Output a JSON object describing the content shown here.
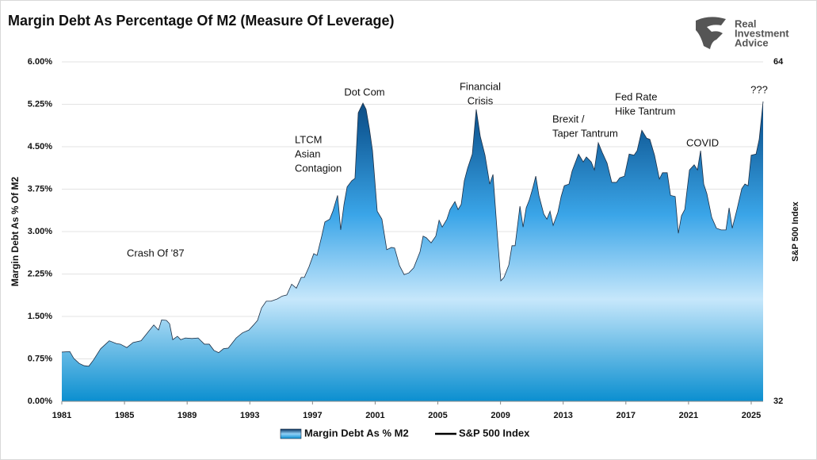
{
  "chart_data": {
    "type": "area",
    "title": "Margin Debt As Percentage Of M2 (Measure Of Leverage)",
    "logo": [
      "Real",
      "Investment",
      "Advice"
    ],
    "ylabel": "Margin Debt As % Of M2",
    "y2label": "S&P 500 Index",
    "x": [
      1981.0,
      1981.51,
      1981.76,
      1982.11,
      1982.42,
      1982.72,
      1983.02,
      1983.48,
      1984.03,
      1984.49,
      1984.74,
      1985.15,
      1985.55,
      1986.06,
      1986.46,
      1986.87,
      1987.17,
      1987.37,
      1987.68,
      1987.88,
      1988.08,
      1988.38,
      1988.59,
      1988.89,
      1989.3,
      1989.7,
      1990.1,
      1990.41,
      1990.71,
      1991.01,
      1991.32,
      1991.62,
      1992.13,
      1992.53,
      1992.94,
      1993.24,
      1993.49,
      1993.75,
      1994.05,
      1994.35,
      1994.76,
      1995.06,
      1995.36,
      1995.67,
      1995.97,
      1996.28,
      1996.48,
      1996.78,
      1997.08,
      1997.29,
      1997.59,
      1997.79,
      1998.1,
      1998.3,
      1998.6,
      1998.8,
      1999.01,
      1999.21,
      1999.51,
      1999.71,
      1999.92,
      2000.22,
      2000.42,
      2000.63,
      2000.83,
      2001.13,
      2001.43,
      2001.74,
      2002.04,
      2002.24,
      2002.55,
      2002.85,
      2003.15,
      2003.46,
      2003.86,
      2004.06,
      2004.27,
      2004.57,
      2004.87,
      2005.08,
      2005.28,
      2005.58,
      2005.78,
      2006.09,
      2006.29,
      2006.49,
      2006.69,
      2006.9,
      2007.2,
      2007.45,
      2007.71,
      2008.01,
      2008.31,
      2008.52,
      2008.82,
      2009.02,
      2009.22,
      2009.53,
      2009.73,
      2009.93,
      2010.24,
      2010.44,
      2010.64,
      2010.84,
      2011.05,
      2011.25,
      2011.45,
      2011.76,
      2011.96,
      2012.16,
      2012.36,
      2012.66,
      2012.87,
      2013.07,
      2013.37,
      2013.57,
      2013.98,
      2014.28,
      2014.48,
      2014.79,
      2014.99,
      2015.24,
      2015.49,
      2015.8,
      2016.1,
      2016.4,
      2016.61,
      2016.91,
      2017.21,
      2017.52,
      2017.72,
      2018.02,
      2018.33,
      2018.53,
      2018.83,
      2019.14,
      2019.34,
      2019.64,
      2019.85,
      2020.15,
      2020.35,
      2020.55,
      2020.76,
      2021.06,
      2021.36,
      2021.57,
      2021.77,
      2021.97,
      2022.17,
      2022.48,
      2022.78,
      2023.08,
      2023.39,
      2023.59,
      2023.79,
      2024.09,
      2024.4,
      2024.6,
      2024.8,
      2025.0,
      2025.31,
      2025.51,
      2025.76
    ],
    "series": [
      {
        "name": "Margin Debt As % M2",
        "color": "#1b8fd3",
        "values": [
          0.87,
          0.88,
          0.76,
          0.67,
          0.63,
          0.62,
          0.73,
          0.93,
          1.07,
          1.02,
          1.01,
          0.95,
          1.04,
          1.07,
          1.21,
          1.35,
          1.26,
          1.44,
          1.43,
          1.37,
          1.09,
          1.15,
          1.09,
          1.12,
          1.11,
          1.12,
          1.01,
          1.01,
          0.9,
          0.86,
          0.93,
          0.94,
          1.12,
          1.21,
          1.26,
          1.35,
          1.43,
          1.65,
          1.77,
          1.77,
          1.81,
          1.86,
          1.88,
          2.07,
          2.0,
          2.19,
          2.19,
          2.38,
          2.61,
          2.58,
          2.92,
          3.17,
          3.22,
          3.36,
          3.64,
          3.03,
          3.48,
          3.79,
          3.9,
          3.94,
          5.1,
          5.27,
          5.16,
          4.82,
          4.43,
          3.36,
          3.22,
          2.68,
          2.72,
          2.71,
          2.4,
          2.24,
          2.27,
          2.36,
          2.64,
          2.92,
          2.89,
          2.8,
          2.92,
          3.2,
          3.08,
          3.22,
          3.39,
          3.53,
          3.39,
          3.48,
          3.9,
          4.12,
          4.37,
          5.16,
          4.68,
          4.35,
          3.84,
          4.01,
          2.86,
          2.13,
          2.19,
          2.41,
          2.75,
          2.75,
          3.45,
          3.08,
          3.42,
          3.56,
          3.76,
          3.98,
          3.64,
          3.31,
          3.22,
          3.36,
          3.11,
          3.34,
          3.62,
          3.81,
          3.84,
          4.07,
          4.37,
          4.23,
          4.32,
          4.23,
          4.09,
          4.57,
          4.4,
          4.21,
          3.87,
          3.87,
          3.95,
          3.98,
          4.37,
          4.35,
          4.43,
          4.79,
          4.65,
          4.63,
          4.35,
          3.93,
          4.04,
          4.04,
          3.64,
          3.62,
          2.97,
          3.28,
          3.39,
          4.09,
          4.18,
          4.09,
          4.43,
          3.84,
          3.67,
          3.25,
          3.06,
          3.03,
          3.03,
          3.42,
          3.06,
          3.39,
          3.76,
          3.84,
          3.81,
          4.35,
          4.37,
          4.63,
          5.3
        ]
      }
    ],
    "legend_extra": {
      "name": "S&P 500 Index",
      "color": "#000000"
    },
    "xlim": [
      1981,
      2025.76
    ],
    "xticks": [
      1981,
      1985,
      1989,
      1993,
      1997,
      2001,
      2005,
      2009,
      2013,
      2017,
      2021,
      2025
    ],
    "ylim": [
      0,
      6
    ],
    "yticks": [
      {
        "value": 0,
        "label": "0.00%"
      },
      {
        "value": 0.75,
        "label": "0.75%"
      },
      {
        "value": 1.5,
        "label": "1.50%"
      },
      {
        "value": 2.25,
        "label": "2.25%"
      },
      {
        "value": 3,
        "label": "3.00%"
      },
      {
        "value": 3.75,
        "label": "3.75%"
      },
      {
        "value": 4.5,
        "label": "4.50%"
      },
      {
        "value": 5.25,
        "label": "5.25%"
      },
      {
        "value": 6,
        "label": "6.00%"
      }
    ],
    "y2lim": [
      32,
      64
    ],
    "y2ticks": [
      32,
      64
    ],
    "grid": true,
    "annotations": [
      [
        "Crash Of '87"
      ],
      [
        "LTCM",
        "Asian",
        "Contagion"
      ],
      [
        "Dot Com"
      ],
      [
        "Financial",
        "Crisis"
      ],
      [
        "Brexit /",
        "Taper Tantrum"
      ],
      [
        "Fed Rate",
        "Hike Tantrum"
      ],
      [
        "COVID"
      ],
      [
        "???"
      ]
    ]
  }
}
